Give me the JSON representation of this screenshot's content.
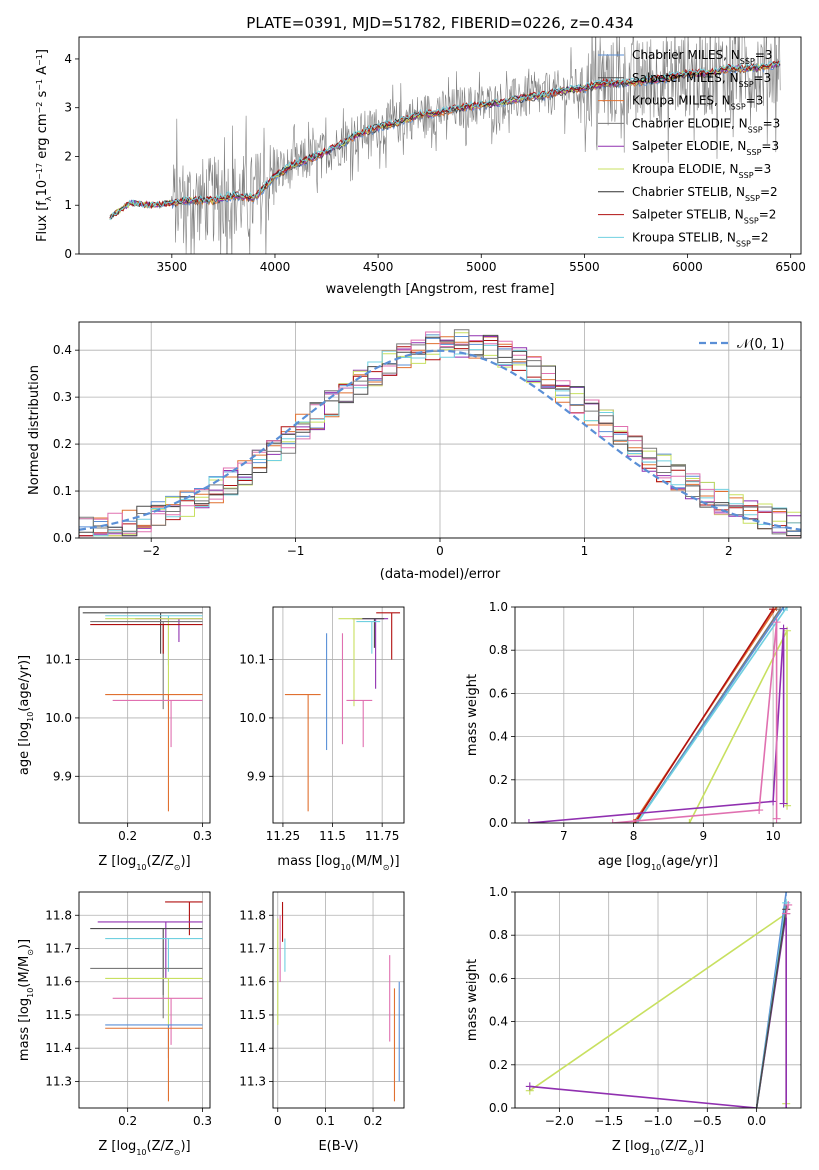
{
  "chart_data": [
    {
      "id": "spectrum",
      "type": "line",
      "title": "PLATE=0391, MJD=51782, FIBERID=0226, z=0.434",
      "xlabel": "wavelength [Angstrom, rest frame]",
      "ylabel_parts": [
        "Flux [f",
        "λ",
        "10",
        "−17",
        " erg cm",
        "−2",
        " s",
        "−1",
        " A",
        "−1",
        "]"
      ],
      "xlim": [
        3050,
        6550
      ],
      "ylim": [
        0,
        4.45
      ],
      "xticks": [
        3500,
        4000,
        4500,
        5000,
        5500,
        6000,
        6500
      ],
      "yticks": [
        0,
        1,
        2,
        3,
        4
      ],
      "grid": false,
      "legend_position": "top-right",
      "legend": [
        {
          "base": "Chabrier MILES, N",
          "sub": "SSP",
          "tail": "=3",
          "color": "#5a8fd6"
        },
        {
          "base": "Salpeter MILES, N",
          "sub": "SSP",
          "tail": "=3",
          "color": "#4a4a4a"
        },
        {
          "base": "Kroupa MILES, N",
          "sub": "SSP",
          "tail": "=3",
          "color": "#e07030"
        },
        {
          "base": "Chabrier ELODIE, N",
          "sub": "SSP",
          "tail": "=3",
          "color": "#7a7a7a"
        },
        {
          "base": "Salpeter ELODIE, N",
          "sub": "SSP",
          "tail": "=3",
          "color": "#9030b0"
        },
        {
          "base": "Kroupa ELODIE, N",
          "sub": "SSP",
          "tail": "=3",
          "color": "#c8e060"
        },
        {
          "base": "Chabrier STELIB, N",
          "sub": "SSP",
          "tail": "=2",
          "color": "#303030"
        },
        {
          "base": "Salpeter STELIB, N",
          "sub": "SSP",
          "tail": "=2",
          "color": "#b01010"
        },
        {
          "base": "Kroupa STELIB, N",
          "sub": "SSP",
          "tail": "=2",
          "color": "#70d0e0"
        }
      ],
      "data_wavelength_range": [
        3200,
        6450
      ],
      "observed_color": "#808080",
      "model_anchors_x": [
        3200,
        3300,
        3400,
        3500,
        3600,
        3700,
        3800,
        3900,
        4000,
        4100,
        4200,
        4300,
        4400,
        4500,
        4600,
        4700,
        4800,
        4900,
        5000,
        5100,
        5200,
        5300,
        5400,
        5500,
        5600,
        5700,
        5800,
        5900,
        6000,
        6100,
        6200,
        6300,
        6400,
        6450
      ],
      "model_anchors_y": [
        0.75,
        1.05,
        1.0,
        1.05,
        1.1,
        1.1,
        1.2,
        1.15,
        1.6,
        1.85,
        2.0,
        2.2,
        2.45,
        2.6,
        2.7,
        2.85,
        2.9,
        3.0,
        3.05,
        3.1,
        3.2,
        3.25,
        3.35,
        3.4,
        3.5,
        3.5,
        3.55,
        3.6,
        3.7,
        3.7,
        3.8,
        3.8,
        3.85,
        3.9
      ]
    },
    {
      "id": "residuals",
      "type": "histogram",
      "xlabel": "(data-model)/error",
      "ylabel": "Normed distribution",
      "xlim": [
        -2.5,
        2.5
      ],
      "ylim": [
        0,
        0.46
      ],
      "xticks": [
        -2,
        -1,
        0,
        1,
        2
      ],
      "xtick_labels": [
        "−2",
        "−1",
        "0",
        "1",
        "2"
      ],
      "yticks": [
        0.0,
        0.1,
        0.2,
        0.3,
        0.4
      ],
      "grid": true,
      "legend_position": "top-right",
      "gaussian_label": "𝒩(0, 1)",
      "gaussian_color": "#5a8fd6",
      "bin_width": 0.1,
      "series_colors": [
        "#5a8fd6",
        "#e07030",
        "#9030b0",
        "#c8e060",
        "#b01010",
        "#70d0e0",
        "#e070b0",
        "#4a4a4a",
        "#7a7a7a"
      ]
    },
    {
      "id": "age-vs-Z",
      "type": "errorbar",
      "xlabel_parts": [
        "Z [log",
        "10",
        "(Z/Z",
        "⊙",
        ")]"
      ],
      "ylabel_parts": [
        "age  [log",
        "10",
        "(age/yr)]"
      ],
      "xlim": [
        0.135,
        0.31
      ],
      "ylim": [
        9.82,
        10.19
      ],
      "xticks": [
        0.2,
        0.3
      ],
      "yticks": [
        9.9,
        10.0,
        10.1
      ],
      "grid": true,
      "points": [
        {
          "x": 0.3,
          "y": 10.18,
          "xerr": [
            0.16,
            0.0
          ],
          "yerr": [
            0.07,
            0.0
          ],
          "color": "#4a4a4a"
        },
        {
          "x": 0.3,
          "y": 10.175,
          "xerr": [
            0.13,
            0.0
          ],
          "yerr": [
            0.085,
            0.0
          ],
          "color": "#70d0e0"
        },
        {
          "x": 0.3,
          "y": 10.17,
          "xerr": [
            0.09,
            0.0
          ],
          "yerr": [
            0.04,
            0.0
          ],
          "color": "#9030b0"
        },
        {
          "x": 0.3,
          "y": 10.17,
          "xerr": [
            0.13,
            0.0
          ],
          "yerr": [
            0.15,
            0.0
          ],
          "color": "#c8e060"
        },
        {
          "x": 0.3,
          "y": 10.165,
          "xerr": [
            0.15,
            0.0
          ],
          "yerr": [
            0.15,
            0.0
          ],
          "color": "#7a7a7a"
        },
        {
          "x": 0.3,
          "y": 10.16,
          "xerr": [
            0.15,
            0.0
          ],
          "yerr": [
            0.05,
            0.0
          ],
          "color": "#b01010"
        },
        {
          "x": 0.3,
          "y": 10.04,
          "xerr": [
            0.13,
            0.0
          ],
          "yerr": [
            0.2,
            0.0
          ],
          "color": "#e07030"
        },
        {
          "x": 0.3,
          "y": 10.03,
          "xerr": [
            0.12,
            0.0
          ],
          "yerr": [
            0.08,
            0.0
          ],
          "color": "#e070b0"
        }
      ]
    },
    {
      "id": "age-vs-mass",
      "type": "errorbar",
      "xlabel_parts": [
        "mass [log",
        "10",
        "(M/M",
        "⊙",
        ")]"
      ],
      "xlim": [
        11.2,
        11.86
      ],
      "ylim": [
        9.82,
        10.19
      ],
      "xticks": [
        11.25,
        11.5,
        11.75
      ],
      "yticks": [
        9.9,
        10.0,
        10.1
      ],
      "grid": true,
      "points": [
        {
          "x": 11.84,
          "y": 10.18,
          "xerr": [
            0.12,
            0.0
          ],
          "yerr": [
            0.08,
            0.0
          ],
          "color": "#b01010"
        },
        {
          "x": 11.78,
          "y": 10.17,
          "xerr": [
            0.18,
            0.0
          ],
          "yerr": [
            0.12,
            0.0
          ],
          "color": "#9030b0"
        },
        {
          "x": 11.76,
          "y": 10.17,
          "xerr": [
            0.14,
            0.0
          ],
          "yerr": [
            0.05,
            0.0
          ],
          "color": "#4a4a4a"
        },
        {
          "x": 11.74,
          "y": 10.165,
          "xerr": [
            0.12,
            0.0
          ],
          "yerr": [
            0.055,
            0.0
          ],
          "color": "#70d0e0"
        },
        {
          "x": 11.65,
          "y": 10.17,
          "xerr": [
            0.12,
            0.0
          ],
          "yerr": [
            0.15,
            0.0
          ],
          "color": "#c8e060"
        },
        {
          "x": 11.7,
          "y": 10.03,
          "xerr": [
            0.13,
            0.0
          ],
          "yerr": [
            0.08,
            0.0
          ],
          "color": "#e070b0"
        },
        {
          "x": 11.44,
          "y": 10.04,
          "xerr": [
            0.18,
            0.0
          ],
          "yerr": [
            0.2,
            0.0
          ],
          "color": "#e07030"
        },
        {
          "x": 11.47,
          "y": 10.145,
          "xerr": [
            0.0,
            0.0
          ],
          "yerr": [
            0.2,
            0.0
          ],
          "color": "#5a8fd6"
        },
        {
          "x": 11.55,
          "y": 10.145,
          "xerr": [
            0.0,
            0.0
          ],
          "yerr": [
            0.19,
            0.0
          ],
          "color": "#e070b0"
        }
      ]
    },
    {
      "id": "massweight-vs-age",
      "type": "line",
      "xlabel_parts": [
        "age  [log",
        "10",
        "(age/yr)]"
      ],
      "ylabel": "mass weight",
      "xlim": [
        6.3,
        10.4
      ],
      "ylim": [
        0,
        1
      ],
      "xticks": [
        7,
        8,
        9,
        10
      ],
      "yticks": [
        0.0,
        0.2,
        0.4,
        0.6,
        0.8,
        1.0
      ],
      "grid": true,
      "series": [
        {
          "x": [
            8.0,
            10.05
          ],
          "y": [
            0.0,
            1.0
          ],
          "color": "#e07030"
        },
        {
          "x": [
            8.02,
            10.0
          ],
          "y": [
            0.0,
            0.99
          ],
          "color": "#b01010"
        },
        {
          "x": [
            8.05,
            10.1
          ],
          "y": [
            0.0,
            0.99
          ],
          "color": "#7a7a7a"
        },
        {
          "x": [
            8.05,
            10.15
          ],
          "y": [
            0.0,
            1.0
          ],
          "color": "#5a8fd6"
        },
        {
          "x": [
            8.05,
            10.2
          ],
          "y": [
            0.0,
            1.0
          ],
          "color": "#70d0e0"
        },
        {
          "x": [
            8.8,
            10.2,
            10.2
          ],
          "y": [
            0.0,
            0.89,
            0.08
          ],
          "color": "#c8e060"
        },
        {
          "x": [
            6.5,
            10.0,
            10.15,
            10.15
          ],
          "y": [
            0.0,
            0.1,
            0.9,
            0.09
          ],
          "color": "#9030b0"
        },
        {
          "x": [
            7.7,
            9.8,
            10.05,
            10.05
          ],
          "y": [
            0.0,
            0.06,
            0.93,
            0.02
          ],
          "color": "#e070b0"
        }
      ]
    },
    {
      "id": "mass-vs-Z",
      "type": "errorbar",
      "xlabel_parts": [
        "Z [log",
        "10",
        "(Z/Z",
        "⊙",
        ")]"
      ],
      "ylabel_parts": [
        "mass [log",
        "10",
        "(M/M",
        "⊙",
        ")]"
      ],
      "xlim": [
        0.135,
        0.31
      ],
      "ylim": [
        11.22,
        11.87
      ],
      "xticks": [
        0.2,
        0.3
      ],
      "yticks": [
        11.3,
        11.4,
        11.5,
        11.6,
        11.7,
        11.8
      ],
      "grid": true,
      "points": [
        {
          "x": 0.3,
          "y": 11.84,
          "xerr": [
            0.05,
            0.0
          ],
          "yerr": [
            0.1,
            0.0
          ],
          "color": "#b01010"
        },
        {
          "x": 0.3,
          "y": 11.78,
          "xerr": [
            0.14,
            0.0
          ],
          "yerr": [
            0.17,
            0.0
          ],
          "color": "#9030b0"
        },
        {
          "x": 0.3,
          "y": 11.76,
          "xerr": [
            0.15,
            0.0
          ],
          "yerr": [
            0.2,
            0.0
          ],
          "color": "#4a4a4a"
        },
        {
          "x": 0.3,
          "y": 11.73,
          "xerr": [
            0.13,
            0.0
          ],
          "yerr": [
            0.1,
            0.0
          ],
          "color": "#70d0e0"
        },
        {
          "x": 0.3,
          "y": 11.64,
          "xerr": [
            0.15,
            0.0
          ],
          "yerr": [
            0.15,
            0.0
          ],
          "color": "#7a7a7a"
        },
        {
          "x": 0.3,
          "y": 11.61,
          "xerr": [
            0.13,
            0.0
          ],
          "yerr": [
            0.15,
            0.0
          ],
          "color": "#c8e060"
        },
        {
          "x": 0.3,
          "y": 11.55,
          "xerr": [
            0.12,
            0.0
          ],
          "yerr": [
            0.14,
            0.0
          ],
          "color": "#e070b0"
        },
        {
          "x": 0.3,
          "y": 11.47,
          "xerr": [
            0.13,
            0.0
          ],
          "yerr": [
            0.1,
            0.0
          ],
          "color": "#5a8fd6"
        },
        {
          "x": 0.3,
          "y": 11.46,
          "xerr": [
            0.13,
            0.0
          ],
          "yerr": [
            0.22,
            0.0
          ],
          "color": "#e07030"
        }
      ]
    },
    {
      "id": "mass-vs-EBV",
      "type": "errorbar",
      "xlabel": "E(B-V)",
      "xlim": [
        -0.01,
        0.265
      ],
      "ylim": [
        11.22,
        11.87
      ],
      "xticks": [
        0.0,
        0.1,
        0.2
      ],
      "yticks": [
        11.3,
        11.4,
        11.5,
        11.6,
        11.7,
        11.8
      ],
      "grid": true,
      "vlines": [
        {
          "x": 0.0,
          "y": [
            11.47,
            11.79
          ],
          "color": "#c8e060"
        },
        {
          "x": 0.005,
          "y": [
            11.6,
            11.8
          ],
          "color": "#e070b0"
        },
        {
          "x": 0.01,
          "y": [
            11.72,
            11.84
          ],
          "color": "#b01010"
        },
        {
          "x": 0.015,
          "y": [
            11.63,
            11.73
          ],
          "color": "#70d0e0"
        },
        {
          "x": 0.235,
          "y": [
            11.42,
            11.68
          ],
          "color": "#e070b0"
        },
        {
          "x": 0.245,
          "y": [
            11.24,
            11.58
          ],
          "color": "#e07030"
        },
        {
          "x": 0.255,
          "y": [
            11.3,
            11.6
          ],
          "color": "#5a8fd6"
        }
      ]
    },
    {
      "id": "massweight-vs-Z",
      "type": "line",
      "xlabel_parts": [
        "Z [log",
        "10",
        "(Z/Z",
        "⊙",
        ")]"
      ],
      "ylabel": "mass weight",
      "xlim": [
        -2.45,
        0.45
      ],
      "ylim": [
        0,
        1
      ],
      "xticks": [
        -2.0,
        -1.5,
        -1.0,
        -0.5,
        0.0
      ],
      "xtick_labels": [
        "−2.0",
        "−1.5",
        "−1.0",
        "−0.5",
        "0.0"
      ],
      "yticks": [
        0.0,
        0.2,
        0.4,
        0.6,
        0.8,
        1.0
      ],
      "grid": true,
      "series": [
        {
          "x": [
            -2.3,
            0.3,
            0.3
          ],
          "y": [
            0.08,
            0.9,
            0.02
          ],
          "color": "#c8e060"
        },
        {
          "x": [
            -2.3,
            0.0,
            0.3,
            0.3
          ],
          "y": [
            0.1,
            0.0,
            0.9,
            0.0
          ],
          "color": "#9030b0"
        },
        {
          "x": [
            0.0,
            0.3
          ],
          "y": [
            0.0,
            1.0
          ],
          "color": "#5a8fd6"
        },
        {
          "x": [
            0.0,
            0.3
          ],
          "y": [
            0.0,
            0.95
          ],
          "color": "#70d0e0"
        },
        {
          "x": [
            0.0,
            0.3
          ],
          "y": [
            0.0,
            0.92
          ],
          "color": "#4a4a4a"
        },
        {
          "x": [
            0.3,
            0.32
          ],
          "y": [
            0.9,
            0.94
          ],
          "color": "#e070b0"
        }
      ]
    }
  ]
}
